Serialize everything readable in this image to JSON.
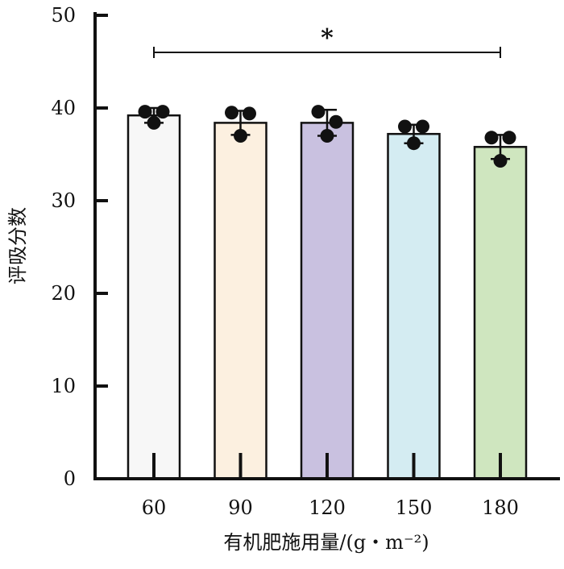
{
  "chart_data": {
    "type": "bar",
    "xlabel": "有机肥施用量/(g・m⁻²)",
    "ylabel": "评吸分数",
    "categories": [
      "60",
      "90",
      "120",
      "150",
      "180"
    ],
    "values": [
      39.2,
      38.4,
      38.4,
      37.2,
      35.8
    ],
    "errors": [
      0.8,
      1.3,
      1.4,
      1.0,
      1.3
    ],
    "points": [
      [
        39.6,
        39.6,
        38.4
      ],
      [
        39.5,
        39.4,
        37.0
      ],
      [
        39.6,
        38.5,
        37.0
      ],
      [
        38.0,
        38.0,
        36.2
      ],
      [
        36.8,
        36.8,
        34.3
      ]
    ],
    "bar_colors": [
      "#f7f7f7",
      "#fcf0e0",
      "#c9c1e0",
      "#d4ecf2",
      "#cfe6bf"
    ],
    "ylim": [
      0,
      50
    ],
    "yticks": [
      0,
      10,
      20,
      30,
      40,
      50
    ],
    "significance": {
      "from": "60",
      "to": "180",
      "label": "*",
      "y": 46
    },
    "grid": false,
    "legend": "none"
  }
}
